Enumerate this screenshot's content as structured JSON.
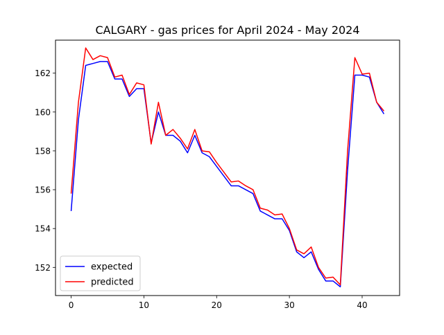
{
  "chart_data": {
    "type": "line",
    "title": "CALGARY - gas prices for April 2024 - May 2024",
    "xlabel": "",
    "ylabel": "",
    "xlim": [
      -2.15,
      45.15
    ],
    "ylim": [
      150.55,
      163.7
    ],
    "xticks": [
      0,
      10,
      20,
      30,
      40
    ],
    "yticks": [
      152,
      154,
      156,
      158,
      160,
      162
    ],
    "grid": false,
    "legend_position": "lower-left",
    "x": [
      0,
      1,
      2,
      3,
      4,
      5,
      6,
      7,
      8,
      9,
      10,
      11,
      12,
      13,
      14,
      15,
      16,
      17,
      18,
      19,
      20,
      21,
      22,
      23,
      24,
      25,
      26,
      27,
      28,
      29,
      30,
      31,
      32,
      33,
      34,
      35,
      36,
      37,
      38,
      39,
      40,
      41,
      42,
      43
    ],
    "series": [
      {
        "name": "expected",
        "color": "#0000ff",
        "values": [
          154.9,
          159.6,
          162.4,
          162.5,
          162.6,
          162.6,
          161.7,
          161.7,
          160.8,
          161.2,
          161.2,
          158.4,
          160.0,
          158.8,
          158.8,
          158.5,
          157.9,
          158.8,
          157.9,
          157.7,
          157.2,
          156.7,
          156.2,
          156.2,
          156.0,
          155.8,
          154.9,
          154.7,
          154.5,
          154.5,
          153.9,
          152.8,
          152.5,
          152.8,
          151.9,
          151.3,
          151.3,
          151.0,
          157.0,
          161.9,
          161.9,
          161.8,
          160.5,
          159.9
        ]
      },
      {
        "name": "predicted",
        "color": "#ff0000",
        "values": [
          155.8,
          160.5,
          163.3,
          162.7,
          162.9,
          162.8,
          161.8,
          161.9,
          160.9,
          161.5,
          161.4,
          158.35,
          160.5,
          158.8,
          159.1,
          158.65,
          158.1,
          159.1,
          158.0,
          157.95,
          157.4,
          156.9,
          156.4,
          156.45,
          156.2,
          156.0,
          155.05,
          154.95,
          154.7,
          154.75,
          154.0,
          152.9,
          152.7,
          153.05,
          152.0,
          151.45,
          151.5,
          151.1,
          158.0,
          162.8,
          161.95,
          162.0,
          160.5,
          160.05
        ]
      }
    ]
  }
}
